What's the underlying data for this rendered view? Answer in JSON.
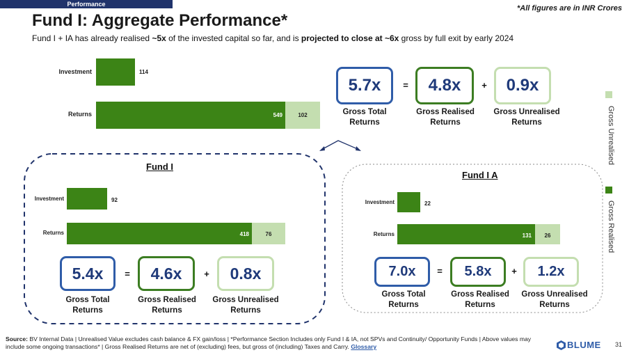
{
  "header": {
    "section_tag": "Performance",
    "note": "*All figures are in INR Crores",
    "title": "Fund I: Aggregate Performance*",
    "subtitle_pre": "Fund I + IA has already realised ",
    "subtitle_b1": "~5x",
    "subtitle_mid": " of the invested capital so far, and is ",
    "subtitle_b2": "projected to close at ~6x",
    "subtitle_post": " gross by full exit by early 2024"
  },
  "colors": {
    "realised": "#3c8416",
    "unrealised": "#c4deb0",
    "navy": "#20336b",
    "blue_border": "#2f5ca8"
  },
  "aggregate": {
    "chart": {
      "investment_label": "Investment",
      "returns_label": "Returns",
      "investment": "114",
      "realised": "549",
      "unrealised": "102"
    },
    "total": "5.7x",
    "realised": "4.8x",
    "unrealised": "0.9x"
  },
  "fund1": {
    "title": "Fund I",
    "chart": {
      "investment_label": "Investment",
      "returns_label": "Returns",
      "investment": "92",
      "realised": "418",
      "unrealised": "76"
    },
    "total": "5.4x",
    "realised": "4.6x",
    "unrealised": "0.8x"
  },
  "fund1a": {
    "title": "Fund I A",
    "chart": {
      "investment_label": "Investment",
      "returns_label": "Returns",
      "investment": "22",
      "realised": "131",
      "unrealised": "26"
    },
    "total": "7.0x",
    "realised": "5.8x",
    "unrealised": "1.2x"
  },
  "labels": {
    "eq": "=",
    "plus": "+",
    "gross_total": "Gross Total",
    "gross_realised": "Gross Realised",
    "gross_unrealised": "Gross Unrealised",
    "returns": "Returns"
  },
  "legend": {
    "unrealised": "Gross Unrealised",
    "realised": "Gross Realised"
  },
  "footer": {
    "source_label": "Source:",
    "text": " BV Internal Data | Unrealised Value excludes cash balance & FX gain/loss | *Performance Section Includes only Fund I & IA, not SPVs and Continuity/ Opportunity Funds | Above values may include some ongoing transactions* | Gross Realised Returns are net of (excluding) fees, but gross of (including) Taxes and Carry. ",
    "link": "Glossary"
  },
  "brand": "BLUME",
  "page_number": "31"
}
